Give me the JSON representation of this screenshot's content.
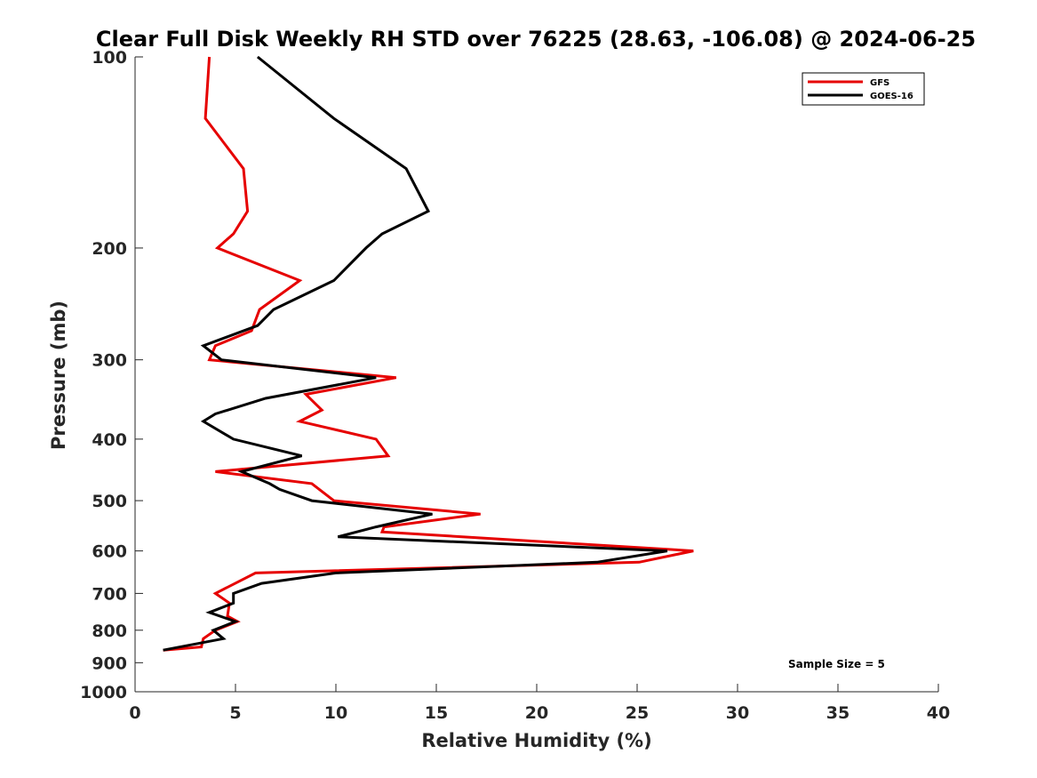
{
  "chart_data": {
    "type": "line",
    "title": "Clear Full Disk Weekly RH STD over 76225 (28.63, -106.08) @ 2024-06-25",
    "xlabel": "Relative Humidity (%)",
    "ylabel": "Pressure (mb)",
    "xlim": [
      0,
      40
    ],
    "ylim": [
      100,
      1000
    ],
    "yscale": "log",
    "y_reversed": true,
    "xticks": [
      "0",
      "5",
      "10",
      "15",
      "20",
      "25",
      "30",
      "35",
      "40"
    ],
    "yticks": [
      "100",
      "200",
      "300",
      "400",
      "500",
      "600",
      "700",
      "800",
      "900",
      "1000"
    ],
    "grid": false,
    "legend": "top-right",
    "annotation": "Sample Size = 5",
    "series": [
      {
        "name": "GFS",
        "color": "#e60000",
        "points": [
          [
            3.7,
            100
          ],
          [
            3.5,
            125
          ],
          [
            5.4,
            150
          ],
          [
            5.6,
            175
          ],
          [
            4.9,
            190
          ],
          [
            4.1,
            200
          ],
          [
            8.2,
            225
          ],
          [
            6.2,
            250
          ],
          [
            5.8,
            270
          ],
          [
            4.0,
            285
          ],
          [
            3.7,
            300
          ],
          [
            13.0,
            320
          ],
          [
            8.5,
            340
          ],
          [
            9.3,
            360
          ],
          [
            8.2,
            375
          ],
          [
            12.0,
            400
          ],
          [
            12.6,
            425
          ],
          [
            4.0,
            450
          ],
          [
            8.8,
            470
          ],
          [
            9.9,
            500
          ],
          [
            17.2,
            525
          ],
          [
            12.4,
            550
          ],
          [
            12.3,
            560
          ],
          [
            27.8,
            600
          ],
          [
            25.1,
            625
          ],
          [
            6.0,
            650
          ],
          [
            4.0,
            700
          ],
          [
            4.7,
            725
          ],
          [
            4.6,
            760
          ],
          [
            5.1,
            775
          ],
          [
            4.0,
            800
          ],
          [
            3.4,
            825
          ],
          [
            3.3,
            850
          ],
          [
            1.4,
            860
          ]
        ]
      },
      {
        "name": "GOES-16",
        "color": "#000000",
        "points": [
          [
            6.1,
            100
          ],
          [
            9.9,
            125
          ],
          [
            13.5,
            150
          ],
          [
            14.6,
            175
          ],
          [
            12.3,
            190
          ],
          [
            11.5,
            200
          ],
          [
            9.9,
            225
          ],
          [
            6.9,
            250
          ],
          [
            6.1,
            265
          ],
          [
            3.4,
            285
          ],
          [
            4.3,
            300
          ],
          [
            12.0,
            320
          ],
          [
            6.5,
            345
          ],
          [
            4.0,
            365
          ],
          [
            3.4,
            375
          ],
          [
            4.9,
            400
          ],
          [
            8.3,
            425
          ],
          [
            5.3,
            450
          ],
          [
            6.7,
            470
          ],
          [
            7.2,
            480
          ],
          [
            8.8,
            500
          ],
          [
            14.8,
            525
          ],
          [
            12.0,
            550
          ],
          [
            10.1,
            570
          ],
          [
            26.5,
            600
          ],
          [
            23.0,
            625
          ],
          [
            10.0,
            650
          ],
          [
            6.3,
            675
          ],
          [
            4.9,
            700
          ],
          [
            4.9,
            725
          ],
          [
            3.7,
            750
          ],
          [
            5.0,
            775
          ],
          [
            3.9,
            800
          ],
          [
            4.4,
            825
          ],
          [
            1.4,
            860
          ]
        ]
      }
    ]
  }
}
